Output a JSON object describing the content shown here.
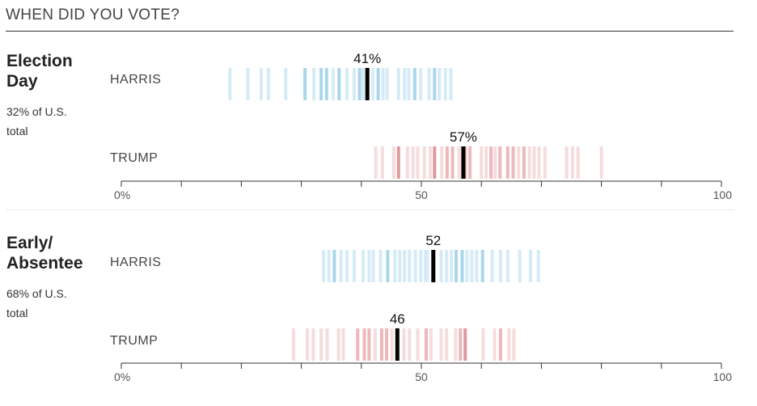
{
  "header": {
    "title": "WHEN DID YOU VOTE?"
  },
  "colors": {
    "harris_light": "#d5ebf6",
    "harris_mid": "#aad6ec",
    "harris_dark": "#85c6e4",
    "trump_light": "#f6dcdd",
    "trump_mid": "#eeb8bb",
    "trump_dark": "#e2999d",
    "average_mark": "#000000",
    "axis": "#333333"
  },
  "sections": [
    {
      "title": "Election Day",
      "subtitle": "32% of U.S. total",
      "candidates": [
        {
          "name": "HARRIS",
          "label": "41%",
          "average": 41,
          "states": [
            {
              "x": 18.1,
              "s": 1
            },
            {
              "x": 21.1,
              "s": 1
            },
            {
              "x": 23.3,
              "s": 1
            },
            {
              "x": 24.5,
              "s": 1
            },
            {
              "x": 27.4,
              "s": 1
            },
            {
              "x": 30.6,
              "s": 2
            },
            {
              "x": 32.1,
              "s": 1
            },
            {
              "x": 33.3,
              "s": 2
            },
            {
              "x": 34.2,
              "s": 2
            },
            {
              "x": 35.3,
              "s": 1
            },
            {
              "x": 36.3,
              "s": 2
            },
            {
              "x": 37.6,
              "s": 1
            },
            {
              "x": 38.8,
              "s": 1
            },
            {
              "x": 39.7,
              "s": 2
            },
            {
              "x": 40.3,
              "s": 1
            },
            {
              "x": 41.9,
              "s": 1
            },
            {
              "x": 42.8,
              "s": 2
            },
            {
              "x": 43.6,
              "s": 1
            },
            {
              "x": 44.3,
              "s": 1
            },
            {
              "x": 46.2,
              "s": 1
            },
            {
              "x": 47.2,
              "s": 1
            },
            {
              "x": 47.9,
              "s": 1
            },
            {
              "x": 48.9,
              "s": 2
            },
            {
              "x": 49.9,
              "s": 1
            },
            {
              "x": 51.3,
              "s": 1
            },
            {
              "x": 52.2,
              "s": 2
            },
            {
              "x": 53.0,
              "s": 1
            },
            {
              "x": 54.0,
              "s": 1
            },
            {
              "x": 54.9,
              "s": 1
            }
          ]
        },
        {
          "name": "TRUMP",
          "label": "57%",
          "average": 57,
          "states": [
            {
              "x": 42.4,
              "s": 1
            },
            {
              "x": 43.5,
              "s": 1
            },
            {
              "x": 45.4,
              "s": 1
            },
            {
              "x": 46.2,
              "s": 3
            },
            {
              "x": 47.7,
              "s": 1
            },
            {
              "x": 48.6,
              "s": 1
            },
            {
              "x": 49.4,
              "s": 1
            },
            {
              "x": 50.5,
              "s": 1
            },
            {
              "x": 51.5,
              "s": 1
            },
            {
              "x": 52.2,
              "s": 3
            },
            {
              "x": 53.4,
              "s": 1
            },
            {
              "x": 54.3,
              "s": 2
            },
            {
              "x": 55.2,
              "s": 2
            },
            {
              "x": 56.3,
              "s": 1
            },
            {
              "x": 57.3,
              "s": 2
            },
            {
              "x": 58.1,
              "s": 2
            },
            {
              "x": 60.0,
              "s": 1
            },
            {
              "x": 60.8,
              "s": 1
            },
            {
              "x": 61.6,
              "s": 2
            },
            {
              "x": 62.3,
              "s": 1
            },
            {
              "x": 63.1,
              "s": 2
            },
            {
              "x": 64.4,
              "s": 2
            },
            {
              "x": 65.3,
              "s": 2
            },
            {
              "x": 66.2,
              "s": 1
            },
            {
              "x": 67.1,
              "s": 2
            },
            {
              "x": 68.0,
              "s": 1
            },
            {
              "x": 68.8,
              "s": 1
            },
            {
              "x": 69.6,
              "s": 1
            },
            {
              "x": 70.6,
              "s": 1
            },
            {
              "x": 74.2,
              "s": 1
            },
            {
              "x": 75.2,
              "s": 1
            },
            {
              "x": 76.1,
              "s": 1
            },
            {
              "x": 80.0,
              "s": 1
            }
          ]
        }
      ],
      "axis": {
        "ticks": [
          0,
          50,
          100
        ],
        "tick_labels": [
          "0%",
          "50",
          "100"
        ]
      }
    },
    {
      "title": "Early/ Absentee",
      "subtitle": "68% of U.S. total",
      "candidates": [
        {
          "name": "HARRIS",
          "label": "52",
          "average": 52,
          "states": [
            {
              "x": 33.7,
              "s": 1
            },
            {
              "x": 34.6,
              "s": 1
            },
            {
              "x": 35.5,
              "s": 2
            },
            {
              "x": 36.6,
              "s": 1
            },
            {
              "x": 37.6,
              "s": 1
            },
            {
              "x": 38.8,
              "s": 1
            },
            {
              "x": 40.3,
              "s": 1
            },
            {
              "x": 41.3,
              "s": 1
            },
            {
              "x": 42.0,
              "s": 1
            },
            {
              "x": 43.2,
              "s": 1
            },
            {
              "x": 44.4,
              "s": 2
            },
            {
              "x": 45.6,
              "s": 1
            },
            {
              "x": 46.4,
              "s": 1
            },
            {
              "x": 47.2,
              "s": 1
            },
            {
              "x": 48.0,
              "s": 1
            },
            {
              "x": 49.0,
              "s": 1
            },
            {
              "x": 49.9,
              "s": 1
            },
            {
              "x": 50.7,
              "s": 1
            },
            {
              "x": 51.0,
              "s": 1
            },
            {
              "x": 53.3,
              "s": 1
            },
            {
              "x": 54.2,
              "s": 1
            },
            {
              "x": 55.0,
              "s": 1
            },
            {
              "x": 55.8,
              "s": 2
            },
            {
              "x": 56.8,
              "s": 2
            },
            {
              "x": 57.6,
              "s": 1
            },
            {
              "x": 58.4,
              "s": 1
            },
            {
              "x": 59.2,
              "s": 1
            },
            {
              "x": 60.2,
              "s": 2
            },
            {
              "x": 61.8,
              "s": 1
            },
            {
              "x": 63.2,
              "s": 1
            },
            {
              "x": 64.4,
              "s": 1
            },
            {
              "x": 66.4,
              "s": 1
            },
            {
              "x": 68.2,
              "s": 1
            },
            {
              "x": 69.5,
              "s": 1
            }
          ]
        },
        {
          "name": "TRUMP",
          "label": "46",
          "average": 46,
          "states": [
            {
              "x": 28.7,
              "s": 1
            },
            {
              "x": 31.0,
              "s": 1
            },
            {
              "x": 32.0,
              "s": 1
            },
            {
              "x": 33.3,
              "s": 1
            },
            {
              "x": 34.3,
              "s": 1
            },
            {
              "x": 36.2,
              "s": 1
            },
            {
              "x": 37.0,
              "s": 1
            },
            {
              "x": 39.4,
              "s": 2
            },
            {
              "x": 40.5,
              "s": 2
            },
            {
              "x": 41.3,
              "s": 2
            },
            {
              "x": 42.3,
              "s": 1
            },
            {
              "x": 43.4,
              "s": 2
            },
            {
              "x": 44.2,
              "s": 2
            },
            {
              "x": 45.1,
              "s": 1
            },
            {
              "x": 47.1,
              "s": 1
            },
            {
              "x": 48.0,
              "s": 1
            },
            {
              "x": 49.4,
              "s": 1
            },
            {
              "x": 50.8,
              "s": 2
            },
            {
              "x": 51.6,
              "s": 1
            },
            {
              "x": 53.3,
              "s": 1
            },
            {
              "x": 54.2,
              "s": 1
            },
            {
              "x": 55.7,
              "s": 1
            },
            {
              "x": 56.5,
              "s": 2
            },
            {
              "x": 57.3,
              "s": 3
            },
            {
              "x": 60.3,
              "s": 1
            },
            {
              "x": 62.2,
              "s": 1
            },
            {
              "x": 63.2,
              "s": 2
            },
            {
              "x": 64.6,
              "s": 1
            },
            {
              "x": 65.4,
              "s": 1
            }
          ]
        }
      ],
      "axis": {
        "ticks": [
          0,
          50,
          100
        ],
        "tick_labels": [
          "0%",
          "50",
          "100"
        ]
      }
    }
  ],
  "chart_data": [
    {
      "type": "strip",
      "title": "Election Day",
      "xlim": [
        0,
        100
      ],
      "x_ticks": [
        "0%",
        "50",
        "100"
      ],
      "series": [
        {
          "name": "HARRIS",
          "average": 41,
          "values": [
            18.1,
            21.1,
            23.3,
            24.5,
            27.4,
            30.6,
            32.1,
            33.3,
            34.2,
            35.3,
            36.3,
            37.6,
            38.8,
            39.7,
            40.3,
            41.9,
            42.8,
            43.6,
            44.3,
            46.2,
            47.2,
            47.9,
            48.9,
            49.9,
            51.3,
            52.2,
            53.0,
            54.0,
            54.9
          ]
        },
        {
          "name": "TRUMP",
          "average": 57,
          "values": [
            42.4,
            43.5,
            45.4,
            46.2,
            47.7,
            48.6,
            49.4,
            50.5,
            51.5,
            52.2,
            53.4,
            54.3,
            55.2,
            56.3,
            57.3,
            58.1,
            60.0,
            60.8,
            61.6,
            62.3,
            63.1,
            64.4,
            65.3,
            66.2,
            67.1,
            68.0,
            68.8,
            69.6,
            70.6,
            74.2,
            75.2,
            76.1,
            80.0
          ]
        }
      ]
    },
    {
      "type": "strip",
      "title": "Early/ Absentee",
      "xlim": [
        0,
        100
      ],
      "x_ticks": [
        "0%",
        "50",
        "100"
      ],
      "series": [
        {
          "name": "HARRIS",
          "average": 52,
          "values": [
            33.7,
            34.6,
            35.5,
            36.6,
            37.6,
            38.8,
            40.3,
            41.3,
            42.0,
            43.2,
            44.4,
            45.6,
            46.4,
            47.2,
            48.0,
            49.0,
            49.9,
            50.7,
            51.0,
            53.3,
            54.2,
            55.0,
            55.8,
            56.8,
            57.6,
            58.4,
            59.2,
            60.2,
            61.8,
            63.2,
            64.4,
            66.4,
            68.2,
            69.5
          ]
        },
        {
          "name": "TRUMP",
          "average": 46,
          "values": [
            28.7,
            31.0,
            32.0,
            33.3,
            34.3,
            36.2,
            37.0,
            39.4,
            40.5,
            41.3,
            42.3,
            43.4,
            44.2,
            45.1,
            47.1,
            48.0,
            49.4,
            50.8,
            51.6,
            53.3,
            54.2,
            55.7,
            56.5,
            57.3,
            60.3,
            62.2,
            63.2,
            64.6,
            65.4
          ]
        }
      ]
    }
  ]
}
